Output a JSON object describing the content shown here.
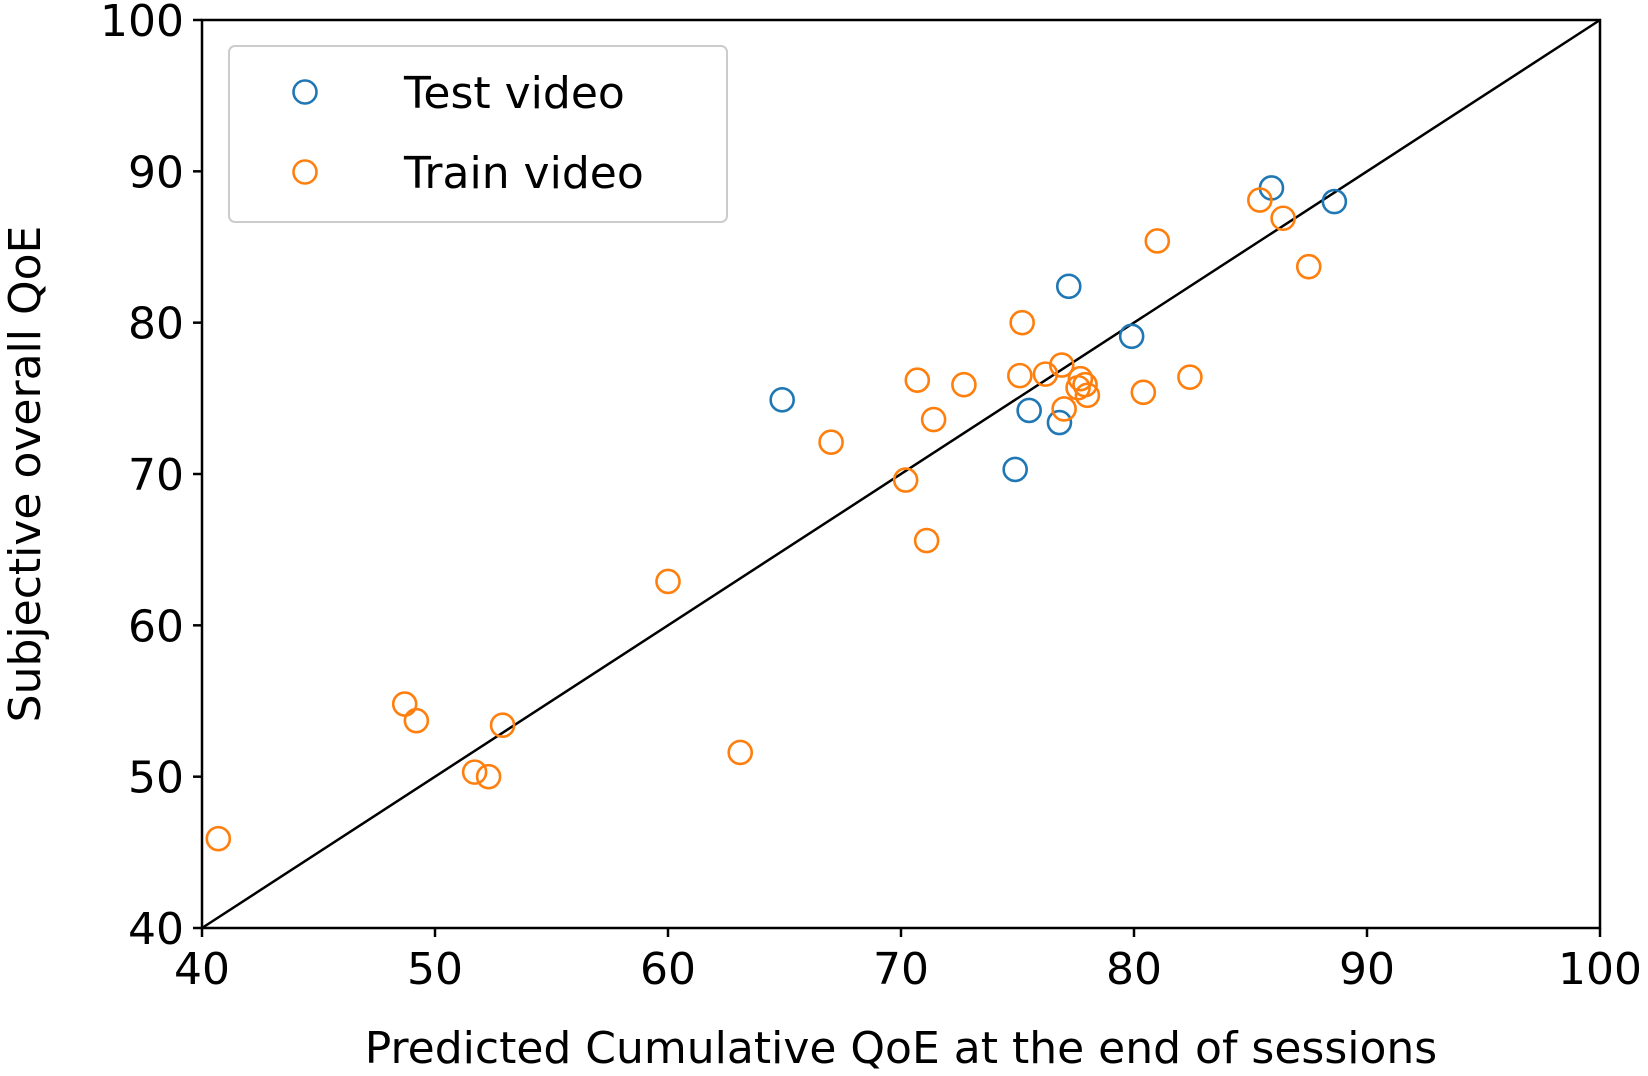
{
  "chart_data": {
    "type": "scatter",
    "title": "",
    "xlabel": "Predicted Cumulative QoE at the end of sessions",
    "ylabel": "Subjective overall QoE",
    "xlim": [
      40,
      100
    ],
    "ylim": [
      40,
      100
    ],
    "xticks": [
      40,
      50,
      60,
      70,
      80,
      90,
      100
    ],
    "yticks": [
      40,
      50,
      60,
      70,
      80,
      90,
      100
    ],
    "grid": false,
    "legend_position": "top-left",
    "reference_line": {
      "from": [
        40,
        40
      ],
      "to": [
        100,
        100
      ],
      "color": "#000000"
    },
    "series": [
      {
        "name": "Test video",
        "color": "#1f77b4",
        "marker": "open-circle",
        "points": [
          [
            64.9,
            74.9
          ],
          [
            74.9,
            70.3
          ],
          [
            75.5,
            74.2
          ],
          [
            76.8,
            73.4
          ],
          [
            77.2,
            82.4
          ],
          [
            79.9,
            79.1
          ],
          [
            85.9,
            88.9
          ],
          [
            88.6,
            88.0
          ]
        ]
      },
      {
        "name": "Train video",
        "color": "#ff7f0e",
        "marker": "open-circle",
        "points": [
          [
            40.7,
            45.9
          ],
          [
            48.7,
            54.8
          ],
          [
            49.2,
            53.7
          ],
          [
            51.7,
            50.3
          ],
          [
            52.3,
            50.0
          ],
          [
            52.9,
            53.4
          ],
          [
            60.0,
            62.9
          ],
          [
            63.1,
            51.6
          ],
          [
            67.0,
            72.1
          ],
          [
            70.2,
            69.6
          ],
          [
            70.7,
            76.2
          ],
          [
            71.1,
            65.6
          ],
          [
            71.4,
            73.6
          ],
          [
            72.7,
            75.9
          ],
          [
            75.1,
            76.5
          ],
          [
            75.2,
            80.0
          ],
          [
            76.2,
            76.6
          ],
          [
            76.9,
            77.2
          ],
          [
            77.0,
            74.3
          ],
          [
            77.6,
            75.7
          ],
          [
            77.7,
            76.3
          ],
          [
            77.9,
            75.9
          ],
          [
            78.0,
            75.2
          ],
          [
            80.4,
            75.4
          ],
          [
            81.0,
            85.4
          ],
          [
            82.4,
            76.4
          ],
          [
            85.4,
            88.1
          ],
          [
            86.4,
            86.9
          ],
          [
            87.5,
            83.7
          ]
        ]
      }
    ]
  }
}
